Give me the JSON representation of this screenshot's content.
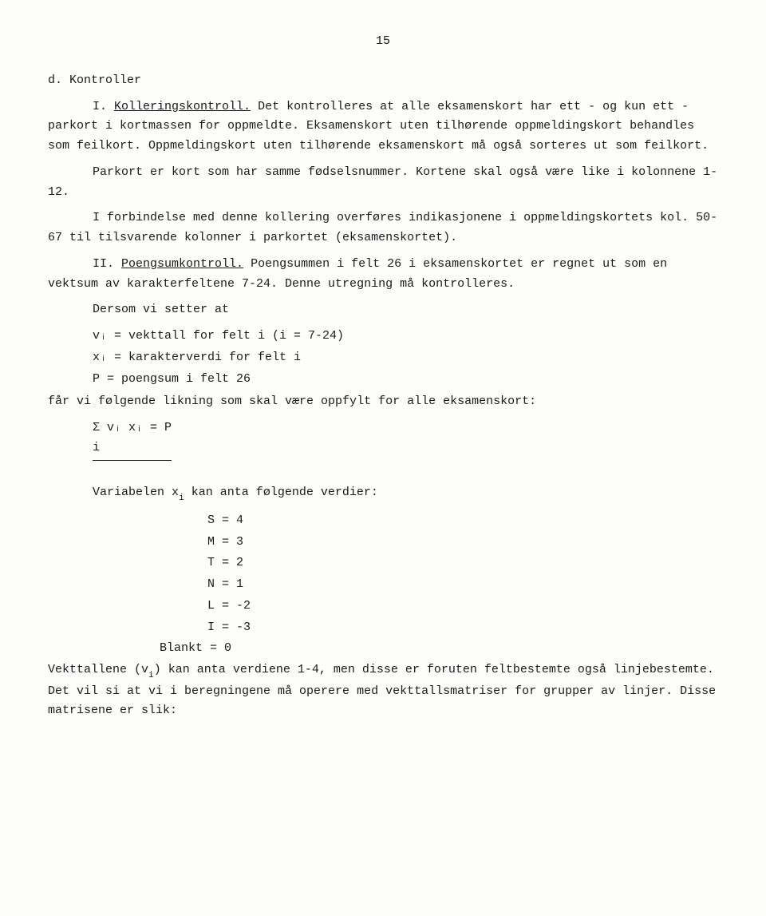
{
  "pageNumber": "15",
  "heading_d": "d. Kontroller",
  "section_I_label": "I.",
  "section_I_title": "Kolleringskontroll.",
  "section_I_text": " Det kontrolleres at alle eksamenskort har ett - og kun ett - parkort i kortmassen for oppmeldte. Eksamenskort uten tilhørende oppmeldingskort behandles som feilkort. Oppmeldingskort uten tilhørende eksamenskort må også sorteres ut som feilkort.",
  "para2": "Parkort er kort som har samme fødselsnummer. Kortene skal også være like i kolonnene 1-12.",
  "para3": "I forbindelse med denne kollering overføres indikasjonene i oppmeldingskortets kol. 50-67 til tilsvarende kolonner i parkortet (eksamenskortet).",
  "section_II_label": "II.",
  "section_II_title": "Poengsumkontroll.",
  "section_II_text": " Poengsummen i felt 26 i eksamenskortet er regnet ut som en vektsum av karakterfeltene 7-24. Denne utregning må kontrolleres.",
  "para5": "Dersom vi setter at",
  "def_v": "vᵢ = vekttall for felt i (i = 7-24)",
  "def_x": "xᵢ = karakterverdi for felt i",
  "def_P": "P  = poengsum i felt 26",
  "para6": "får vi følgende likning som skal være oppfylt for alle eksamenskort:",
  "equation": "Σ vᵢ xᵢ = P",
  "equation_sub": "i",
  "para7_pre": "Variabelen  x",
  "para7_post": " kan anta følgende verdier:",
  "val_S": "S = 4",
  "val_M": "M = 3",
  "val_T": "T = 2",
  "val_N": "N = 1",
  "val_L": "L = -2",
  "val_I": "I = -3",
  "val_Blank": "Blankt = 0",
  "para8_pre": "Vekttallene (v",
  "para8_post": ") kan anta verdiene 1-4, men disse er foruten feltbestemte også linjebestemte. Det vil si at vi i beregningene må operere med vekttallsmatriser for grupper av linjer. Disse matrisene er slik:",
  "sub_i": "i"
}
